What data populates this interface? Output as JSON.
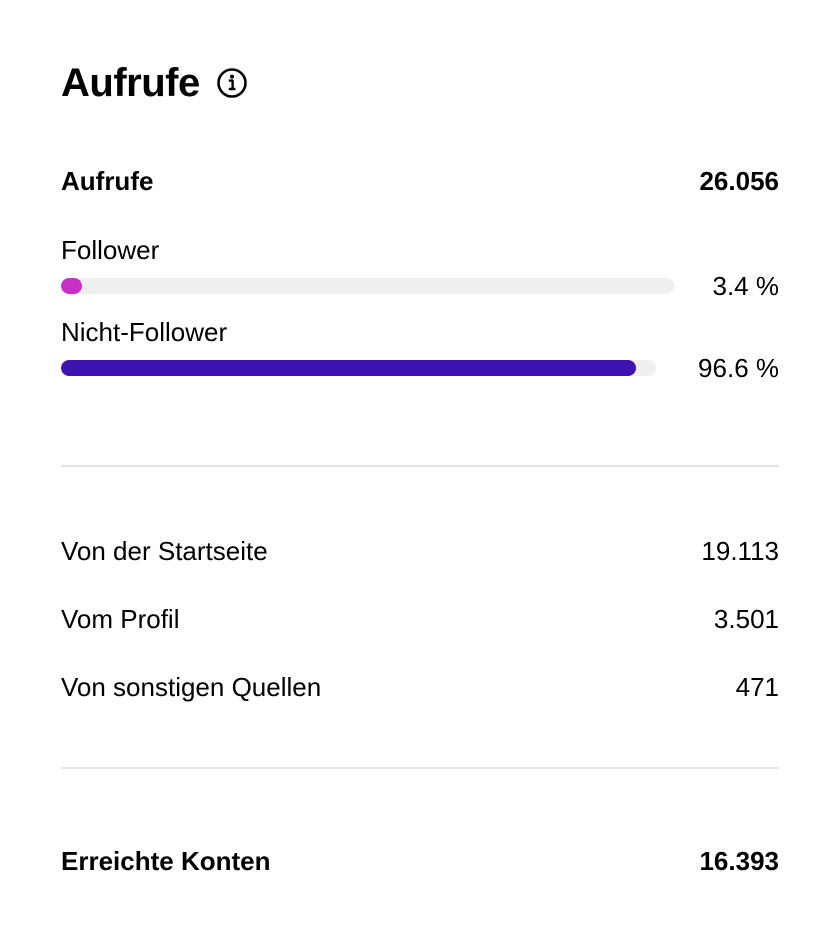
{
  "header": {
    "title": "Aufrufe",
    "info_icon": "info-circle-icon"
  },
  "views": {
    "label": "Aufrufe",
    "value": "26.056",
    "follower": {
      "label": "Follower",
      "percent_text": "3.4 %",
      "percent": 3.4,
      "color": "#c930c8"
    },
    "non_follower": {
      "label": "Nicht-Follower",
      "percent_text": "96.6 %",
      "percent": 96.6,
      "color": "#3d12b0"
    }
  },
  "sources": [
    {
      "label": "Von der Startseite",
      "value": "19.113"
    },
    {
      "label": "Vom Profil",
      "value": "3.501"
    },
    {
      "label": "Von sonstigen Quellen",
      "value": "471"
    }
  ],
  "reach": {
    "label": "Erreichte Konten",
    "value": "16.393"
  },
  "colors": {
    "track": "#efefef",
    "divider": "#e3e3e3"
  }
}
